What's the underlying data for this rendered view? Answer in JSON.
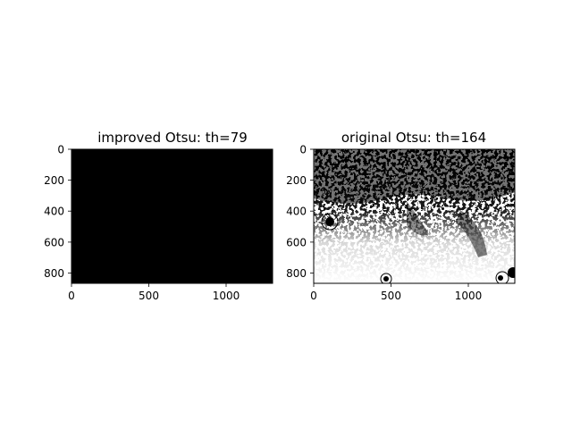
{
  "chart_data": [
    {
      "type": "image",
      "title": "improved Otsu: th=79",
      "image_content": "binary thresholded image, almost entirely black",
      "colors": {
        "background": "#000000",
        "foreground": "#ffffff"
      },
      "xlim": [
        0,
        1300
      ],
      "ylim": [
        866,
        0
      ],
      "xticks": [
        0,
        500,
        1000
      ],
      "yticks": [
        0,
        200,
        400,
        600,
        800
      ],
      "xtick_labels": [
        "0",
        "500",
        "1000"
      ],
      "ytick_labels": [
        "0",
        "200",
        "400",
        "600",
        "800"
      ]
    },
    {
      "type": "image",
      "title": "original Otsu: th=164",
      "image_content": "binary thresholded image, dense black speckle in upper half, mostly white lower half with dark blobs",
      "colors": {
        "background": "#ffffff",
        "foreground": "#000000"
      },
      "xlim": [
        0,
        1300
      ],
      "ylim": [
        866,
        0
      ],
      "xticks": [
        0,
        500,
        1000
      ],
      "yticks": [
        0,
        200,
        400,
        600,
        800
      ],
      "xtick_labels": [
        "0",
        "500",
        "1000"
      ],
      "ytick_labels": [
        "0",
        "200",
        "400",
        "600",
        "800"
      ]
    }
  ]
}
